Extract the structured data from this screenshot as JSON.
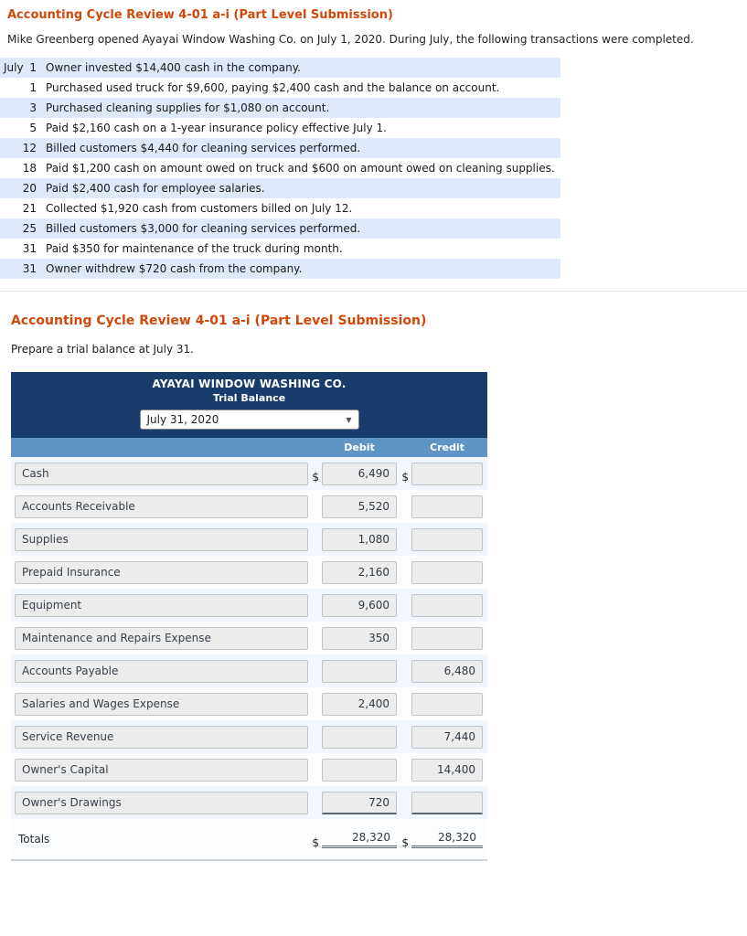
{
  "colors": {
    "title_red": "#d0490b",
    "header_navy": "#183d6d",
    "colhead_blue": "#6094c6",
    "row_alt_blue": "#dbe9f8",
    "tb_row_alt": "#f0f6fb",
    "field_bg": "#ececec",
    "field_border": "#c0c6cc"
  },
  "section1": {
    "title": "Accounting Cycle Review 4-01 a-i (Part Level Submission)",
    "intro": "Mike Greenberg opened Ayayai Window Washing Co. on July 1, 2020. During July, the following transactions were completed.",
    "transactions": [
      {
        "month": "July",
        "day": "1",
        "desc": "Owner invested $14,400 cash in the company."
      },
      {
        "month": "",
        "day": "1",
        "desc": "Purchased used truck for $9,600, paying $2,400 cash and the balance on account."
      },
      {
        "month": "",
        "day": "3",
        "desc": "Purchased cleaning supplies for $1,080 on account."
      },
      {
        "month": "",
        "day": "5",
        "desc": "Paid $2,160 cash on a 1-year insurance policy effective July 1."
      },
      {
        "month": "",
        "day": "12",
        "desc": "Billed customers $4,440 for cleaning services performed."
      },
      {
        "month": "",
        "day": "18",
        "desc": "Paid $1,200 cash on amount owed on truck and $600 on amount owed on cleaning supplies."
      },
      {
        "month": "",
        "day": "20",
        "desc": "Paid $2,400 cash for employee salaries."
      },
      {
        "month": "",
        "day": "21",
        "desc": "Collected $1,920 cash from customers billed on July 12."
      },
      {
        "month": "",
        "day": "25",
        "desc": "Billed customers $3,000 for cleaning services performed."
      },
      {
        "month": "",
        "day": "31",
        "desc": "Paid $350 for maintenance of the truck during month."
      },
      {
        "month": "",
        "day": "31",
        "desc": "Owner withdrew $720 cash from the company."
      }
    ]
  },
  "section2": {
    "title": "Accounting Cycle Review 4-01 a-i (Part Level Submission)",
    "instruction": "Prepare a trial balance at July 31.",
    "trial_balance": {
      "company": "AYAYAI WINDOW WASHING CO.",
      "subtitle": "Trial Balance",
      "date_value": "July 31, 2020",
      "dropdown_icon": "▼",
      "currency_symbol": "$",
      "columns": {
        "debit": "Debit",
        "credit": "Credit"
      },
      "rows": [
        {
          "account": "Cash",
          "debit": "6,490",
          "credit": "",
          "dollar": true,
          "underline": false
        },
        {
          "account": "Accounts Receivable",
          "debit": "5,520",
          "credit": "",
          "dollar": false,
          "underline": false
        },
        {
          "account": "Supplies",
          "debit": "1,080",
          "credit": "",
          "dollar": false,
          "underline": false
        },
        {
          "account": "Prepaid Insurance",
          "debit": "2,160",
          "credit": "",
          "dollar": false,
          "underline": false
        },
        {
          "account": "Equipment",
          "debit": "9,600",
          "credit": "",
          "dollar": false,
          "underline": false
        },
        {
          "account": "Maintenance and Repairs Expense",
          "debit": "350",
          "credit": "",
          "dollar": false,
          "underline": false
        },
        {
          "account": "Accounts Payable",
          "debit": "",
          "credit": "6,480",
          "dollar": false,
          "underline": false
        },
        {
          "account": "Salaries and Wages Expense",
          "debit": "2,400",
          "credit": "",
          "dollar": false,
          "underline": false
        },
        {
          "account": "Service Revenue",
          "debit": "",
          "credit": "7,440",
          "dollar": false,
          "underline": false
        },
        {
          "account": "Owner's Capital",
          "debit": "",
          "credit": "14,400",
          "dollar": false,
          "underline": false
        },
        {
          "account": "Owner's Drawings",
          "debit": "720",
          "credit": "",
          "dollar": false,
          "underline": true
        }
      ],
      "totals": {
        "label": "Totals",
        "debit": "28,320",
        "credit": "28,320"
      }
    }
  }
}
